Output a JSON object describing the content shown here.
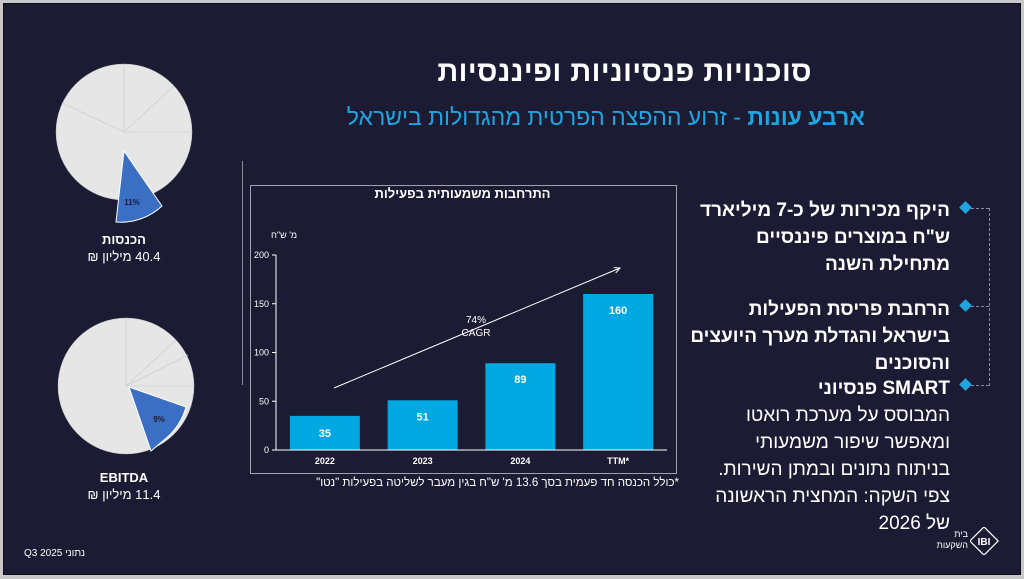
{
  "title": "סוכנויות פנסיוניות ופיננסיות",
  "subtitle": {
    "bold": "ארבע עונות",
    "rest": " - זרוע ההפצה הפרטית מהגדולות בישראל"
  },
  "pies": [
    {
      "name": "revenue",
      "share_label": "11%",
      "share": 0.11,
      "label": "הכנסות",
      "value": "40.4 מיליון ₪"
    },
    {
      "name": "ebitda",
      "share_label": "9%",
      "share": 0.09,
      "label": "EBITDA",
      "value": "11.4 מיליון ₪"
    }
  ],
  "chart_data": {
    "type": "bar",
    "title": "התרחבות משמעותית בפעילות",
    "ylabel": "מ' ש\"ח",
    "categories": [
      "2022",
      "2023",
      "2024",
      "TTM*"
    ],
    "values": [
      35,
      51,
      89,
      160
    ],
    "value_labels": [
      "35",
      "51",
      "89",
      "160"
    ],
    "yticks": [
      0,
      50,
      100,
      150,
      200
    ],
    "ytick_labels": [
      "0",
      "50",
      "100",
      "150",
      "200"
    ],
    "ylim": [
      0,
      200
    ],
    "annotation": {
      "line1": "74%",
      "line2": "CAGR"
    },
    "bar_color": "#00a8e1"
  },
  "footnote": "*כולל הכנסה חד פעמית בסך 13.6 מ' ש\"ח בגין מעבר לשליטה בפעילות \"נטו\"",
  "bullets": [
    {
      "text": "היקף מכירות של כ-7 מיליארד ש\"ח במוצרים פיננסיים מתחילת השנה"
    },
    {
      "text": "הרחבת פריסת הפעילות בישראל והגדלת מערך היועצים והסוכנים"
    },
    {
      "title": "SMART פנסיוני",
      "body": "המבוסס על מערכת רואטו ומאפשר שיפור משמעותי בניתוח נתונים ובמתן השירות. צפי השקה: המחצית הראשונה של 2026"
    }
  ],
  "date_note": "נתוני Q3 2025",
  "logo": {
    "mark": "IBI",
    "line1": "בית",
    "line2": "השקעות"
  },
  "colors": {
    "accent": "#1ea5e0",
    "background": "#1b1c33",
    "pie_fill": "#e6e6e6",
    "pie_highlight": "#3a6fc4"
  }
}
